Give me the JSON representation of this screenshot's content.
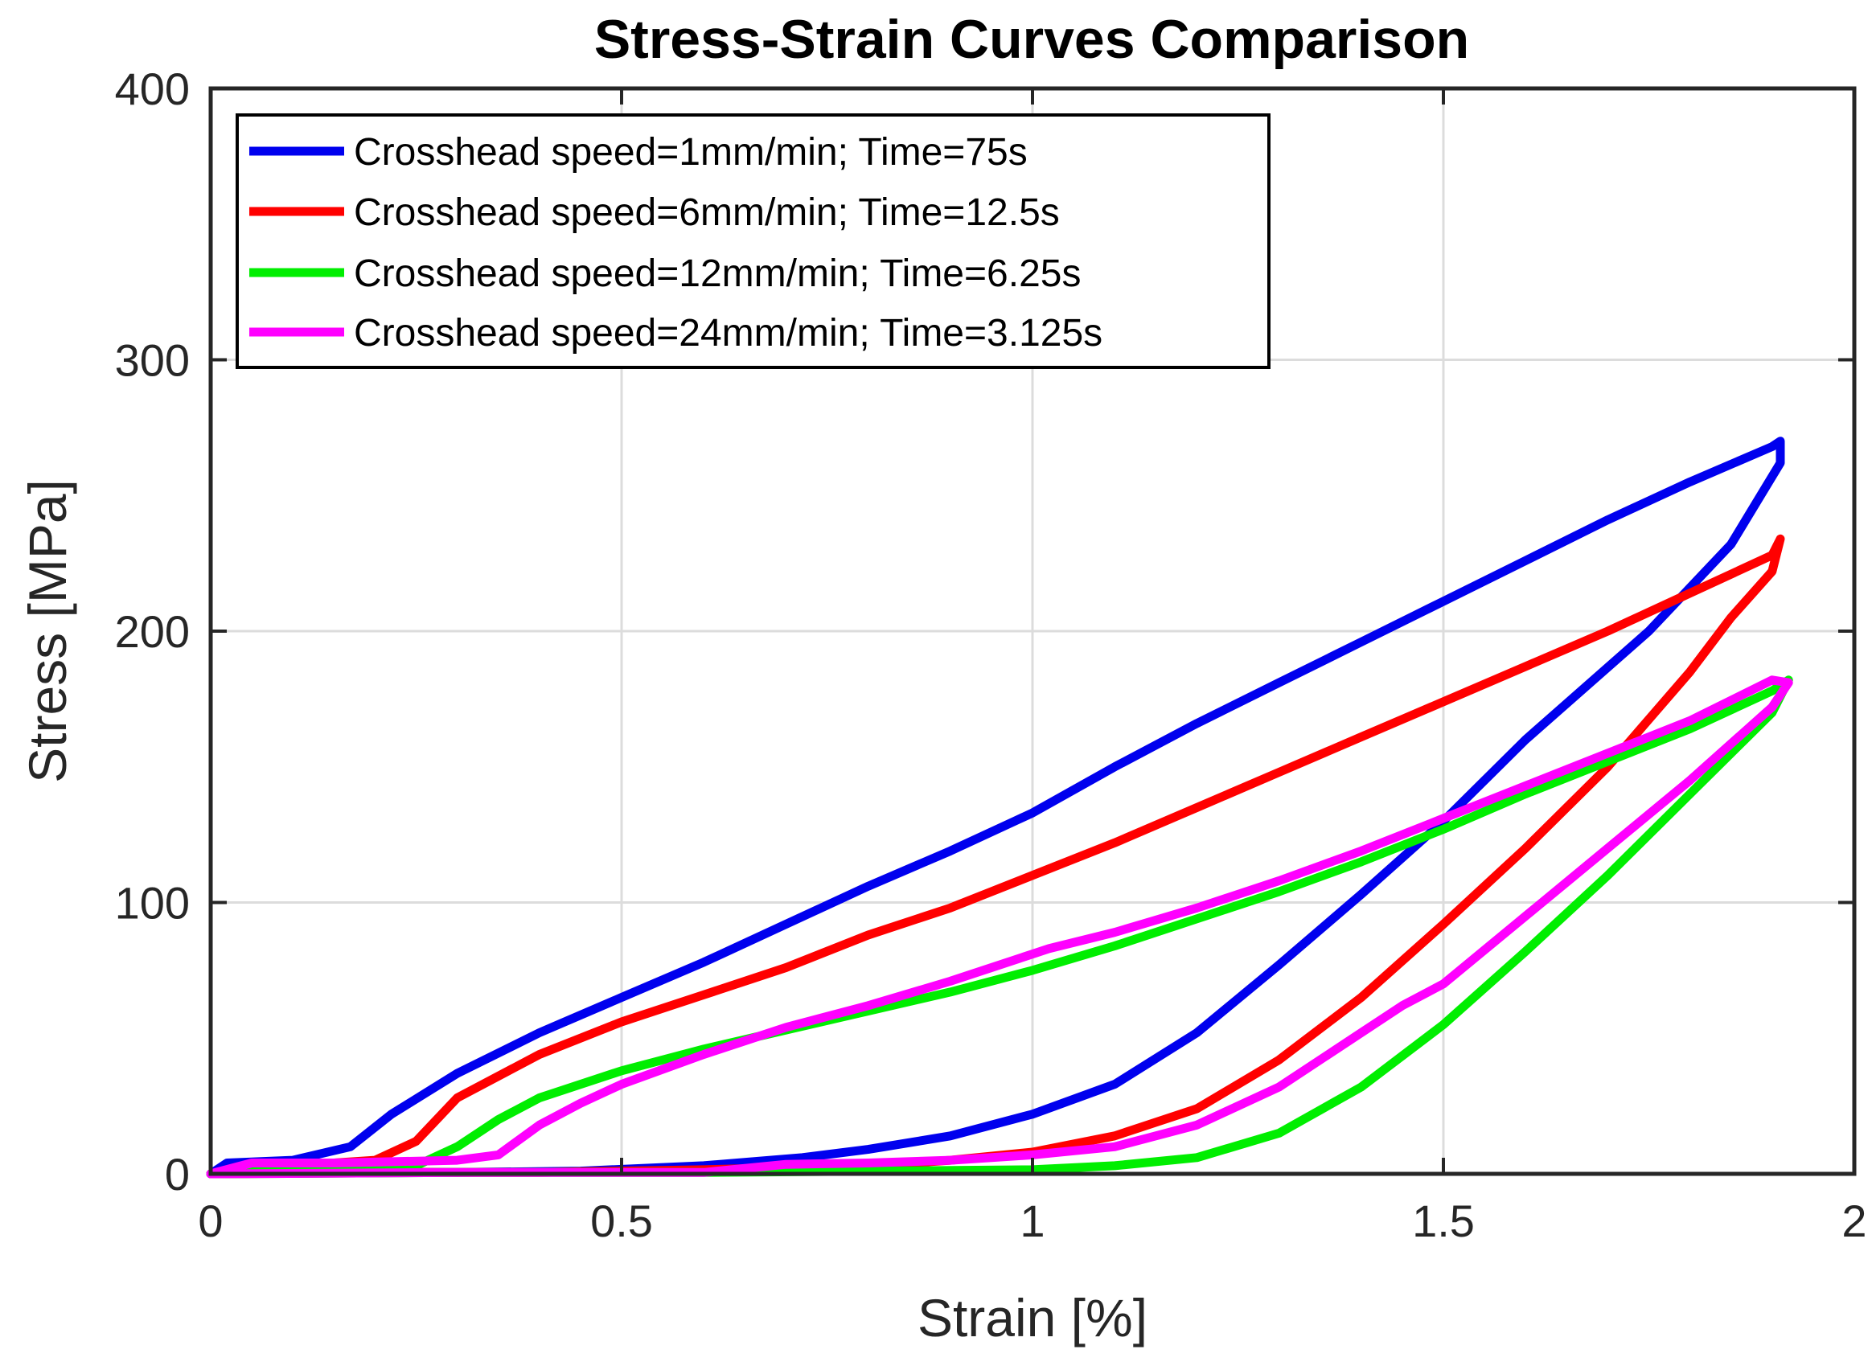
{
  "chart_data": {
    "type": "line",
    "title": "Stress-Strain Curves Comparison",
    "xlabel": "Strain [%]",
    "ylabel": "Stress [MPa]",
    "xlim": [
      0,
      2
    ],
    "ylim": [
      0,
      400
    ],
    "xticks": [
      0,
      0.5,
      1,
      1.5,
      2
    ],
    "xtick_labels": [
      "0",
      "0.5",
      "1",
      "1.5",
      "2"
    ],
    "yticks": [
      0,
      100,
      200,
      300,
      400
    ],
    "ytick_labels": [
      "0",
      "100",
      "200",
      "300",
      "400"
    ],
    "grid": true,
    "legend_position": "top-left",
    "series": [
      {
        "name": "Crosshead speed=1mm/min; Time=75s",
        "color": "#0000ee",
        "points": [
          [
            0,
            0
          ],
          [
            0.02,
            4
          ],
          [
            0.1,
            5
          ],
          [
            0.17,
            10
          ],
          [
            0.22,
            22
          ],
          [
            0.3,
            37
          ],
          [
            0.4,
            52
          ],
          [
            0.5,
            65
          ],
          [
            0.6,
            78
          ],
          [
            0.7,
            92
          ],
          [
            0.8,
            106
          ],
          [
            0.9,
            119
          ],
          [
            1.0,
            133
          ],
          [
            1.1,
            150
          ],
          [
            1.2,
            166
          ],
          [
            1.3,
            181
          ],
          [
            1.4,
            196
          ],
          [
            1.5,
            211
          ],
          [
            1.6,
            226
          ],
          [
            1.7,
            241
          ],
          [
            1.8,
            255
          ],
          [
            1.9,
            268
          ],
          [
            1.91,
            270
          ],
          [
            1.91,
            262
          ],
          [
            1.85,
            232
          ],
          [
            1.75,
            200
          ],
          [
            1.6,
            160
          ],
          [
            1.5,
            130
          ],
          [
            1.4,
            103
          ],
          [
            1.3,
            77
          ],
          [
            1.2,
            52
          ],
          [
            1.1,
            33
          ],
          [
            1.0,
            22
          ],
          [
            0.9,
            14
          ],
          [
            0.8,
            9
          ],
          [
            0.72,
            6
          ],
          [
            0.6,
            3
          ],
          [
            0.45,
            1
          ],
          [
            0.3,
            0.5
          ],
          [
            0.1,
            0.5
          ],
          [
            0,
            0
          ]
        ]
      },
      {
        "name": "Crosshead speed=6mm/min; Time=12.5s",
        "color": "#ff0000",
        "points": [
          [
            0,
            0
          ],
          [
            0.1,
            3
          ],
          [
            0.2,
            5
          ],
          [
            0.25,
            12
          ],
          [
            0.3,
            28
          ],
          [
            0.4,
            44
          ],
          [
            0.5,
            56
          ],
          [
            0.6,
            66
          ],
          [
            0.7,
            76
          ],
          [
            0.8,
            88
          ],
          [
            0.9,
            98
          ],
          [
            1.0,
            110
          ],
          [
            1.1,
            122
          ],
          [
            1.2,
            135
          ],
          [
            1.3,
            148
          ],
          [
            1.4,
            161
          ],
          [
            1.5,
            174
          ],
          [
            1.6,
            187
          ],
          [
            1.7,
            200
          ],
          [
            1.8,
            214
          ],
          [
            1.9,
            228
          ],
          [
            1.91,
            234
          ],
          [
            1.9,
            222
          ],
          [
            1.85,
            205
          ],
          [
            1.8,
            185
          ],
          [
            1.7,
            150
          ],
          [
            1.6,
            120
          ],
          [
            1.5,
            92
          ],
          [
            1.4,
            65
          ],
          [
            1.3,
            42
          ],
          [
            1.2,
            24
          ],
          [
            1.1,
            14
          ],
          [
            1.0,
            8
          ],
          [
            0.9,
            5
          ],
          [
            0.8,
            3
          ],
          [
            0.6,
            1.5
          ],
          [
            0.4,
            0.5
          ],
          [
            0.2,
            0.5
          ],
          [
            0,
            0
          ]
        ]
      },
      {
        "name": "Crosshead speed=12mm/min; Time=6.25s",
        "color": "#00ee00",
        "points": [
          [
            0,
            0
          ],
          [
            0.1,
            2
          ],
          [
            0.25,
            3
          ],
          [
            0.3,
            10
          ],
          [
            0.35,
            20
          ],
          [
            0.4,
            28
          ],
          [
            0.5,
            38
          ],
          [
            0.6,
            46
          ],
          [
            0.7,
            53
          ],
          [
            0.8,
            60
          ],
          [
            0.9,
            67
          ],
          [
            1.0,
            75
          ],
          [
            1.1,
            84
          ],
          [
            1.2,
            94
          ],
          [
            1.3,
            104
          ],
          [
            1.4,
            115
          ],
          [
            1.5,
            127
          ],
          [
            1.6,
            140
          ],
          [
            1.7,
            152
          ],
          [
            1.8,
            164
          ],
          [
            1.9,
            178
          ],
          [
            1.92,
            182
          ],
          [
            1.9,
            170
          ],
          [
            1.8,
            140
          ],
          [
            1.7,
            110
          ],
          [
            1.6,
            82
          ],
          [
            1.5,
            55
          ],
          [
            1.4,
            32
          ],
          [
            1.3,
            15
          ],
          [
            1.2,
            6
          ],
          [
            1.1,
            3
          ],
          [
            1.0,
            1.5
          ],
          [
            0.8,
            1
          ],
          [
            0.6,
            0.5
          ],
          [
            0.3,
            0.5
          ],
          [
            0,
            0
          ]
        ]
      },
      {
        "name": "Crosshead speed=24mm/min; Time=3.125s",
        "color": "#ff00ff",
        "points": [
          [
            0,
            0
          ],
          [
            0.05,
            4
          ],
          [
            0.15,
            4
          ],
          [
            0.3,
            5
          ],
          [
            0.35,
            7
          ],
          [
            0.4,
            18
          ],
          [
            0.45,
            26
          ],
          [
            0.5,
            33
          ],
          [
            0.6,
            44
          ],
          [
            0.7,
            54
          ],
          [
            0.8,
            62
          ],
          [
            0.9,
            71
          ],
          [
            1.0,
            81
          ],
          [
            1.02,
            83
          ],
          [
            1.1,
            89
          ],
          [
            1.2,
            98
          ],
          [
            1.3,
            108
          ],
          [
            1.4,
            119
          ],
          [
            1.5,
            131
          ],
          [
            1.6,
            143
          ],
          [
            1.7,
            155
          ],
          [
            1.8,
            167
          ],
          [
            1.9,
            182
          ],
          [
            1.92,
            181
          ],
          [
            1.9,
            172
          ],
          [
            1.8,
            145
          ],
          [
            1.7,
            120
          ],
          [
            1.6,
            95
          ],
          [
            1.5,
            70
          ],
          [
            1.45,
            62
          ],
          [
            1.4,
            52
          ],
          [
            1.3,
            32
          ],
          [
            1.2,
            18
          ],
          [
            1.1,
            10
          ],
          [
            1.0,
            7
          ],
          [
            0.9,
            5
          ],
          [
            0.8,
            4
          ],
          [
            0.7,
            3.5
          ],
          [
            0.6,
            0.5
          ],
          [
            0.3,
            0.5
          ],
          [
            0,
            0
          ]
        ]
      }
    ]
  }
}
